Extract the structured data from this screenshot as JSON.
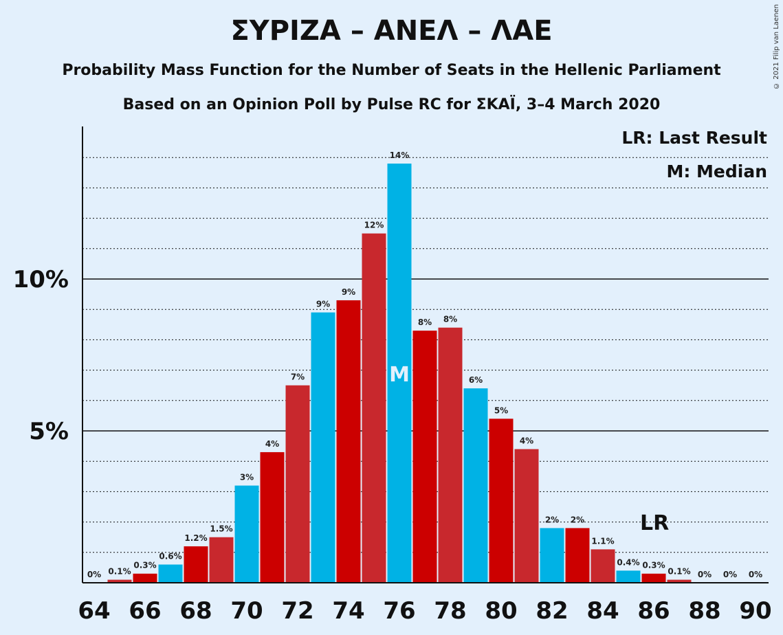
{
  "title": "ΣΥΡΙΖΑ – ΑΝΕΛ – ΛΑΕ",
  "subtitle": "Probability Mass Function for the Number of Seats in the Hellenic Parliament",
  "subtitle2": "Based on an Opinion Poll by Pulse RC for ΣΚΑΪ, 3–4 March 2020",
  "copyright": "© 2021 Filip van Laenen",
  "legend": {
    "last_result": "LR: Last Result",
    "median": "M: Median"
  },
  "colors": {
    "blue": "#00b2e5",
    "red_dark": "#cc0000",
    "red_light": "#c8282d",
    "background": "#e3f0fc"
  },
  "chart_data": {
    "type": "bar",
    "x": [
      64,
      65,
      66,
      67,
      68,
      69,
      70,
      71,
      72,
      73,
      74,
      75,
      76,
      77,
      78,
      79,
      80,
      81,
      82,
      83,
      84,
      85,
      86,
      87,
      88,
      89,
      90
    ],
    "values": [
      0,
      0.1,
      0.3,
      0.6,
      1.2,
      1.5,
      3.2,
      4.3,
      6.5,
      8.9,
      9.3,
      11.5,
      13.8,
      8.3,
      8.4,
      6.4,
      5.4,
      4.4,
      1.8,
      1.8,
      1.1,
      0.4,
      0.3,
      0.1,
      0,
      0,
      0
    ],
    "bar_colors": [
      "blue",
      "red_light",
      "red_dark",
      "blue",
      "red_dark",
      "red_light",
      "blue",
      "red_dark",
      "red_light",
      "blue",
      "red_dark",
      "red_light",
      "blue",
      "red_dark",
      "red_light",
      "blue",
      "red_dark",
      "red_light",
      "blue",
      "red_dark",
      "red_light",
      "blue",
      "red_dark",
      "red_light",
      "blue",
      "red_dark",
      "red_light"
    ],
    "labels": [
      "0%",
      "0.1%",
      "0.3%",
      "0.6%",
      "1.2%",
      "1.5%",
      "3%",
      "4%",
      "7%",
      "9%",
      "9%",
      "12%",
      "14%",
      "8%",
      "8%",
      "6%",
      "5%",
      "4%",
      "2%",
      "2%",
      "1.1%",
      "0.4%",
      "0.3%",
      "0.1%",
      "0%",
      "0%",
      "0%"
    ],
    "x_ticks": [
      "64",
      "66",
      "68",
      "70",
      "72",
      "74",
      "76",
      "78",
      "80",
      "82",
      "84",
      "86",
      "88",
      "90"
    ],
    "y_ticks": [
      {
        "value": 5,
        "label": "5%"
      },
      {
        "value": 10,
        "label": "10%"
      }
    ],
    "ylim": [
      0,
      15
    ],
    "grid": true,
    "median": 76,
    "median_label": "M",
    "last_result": 86,
    "last_result_label": "LR"
  }
}
